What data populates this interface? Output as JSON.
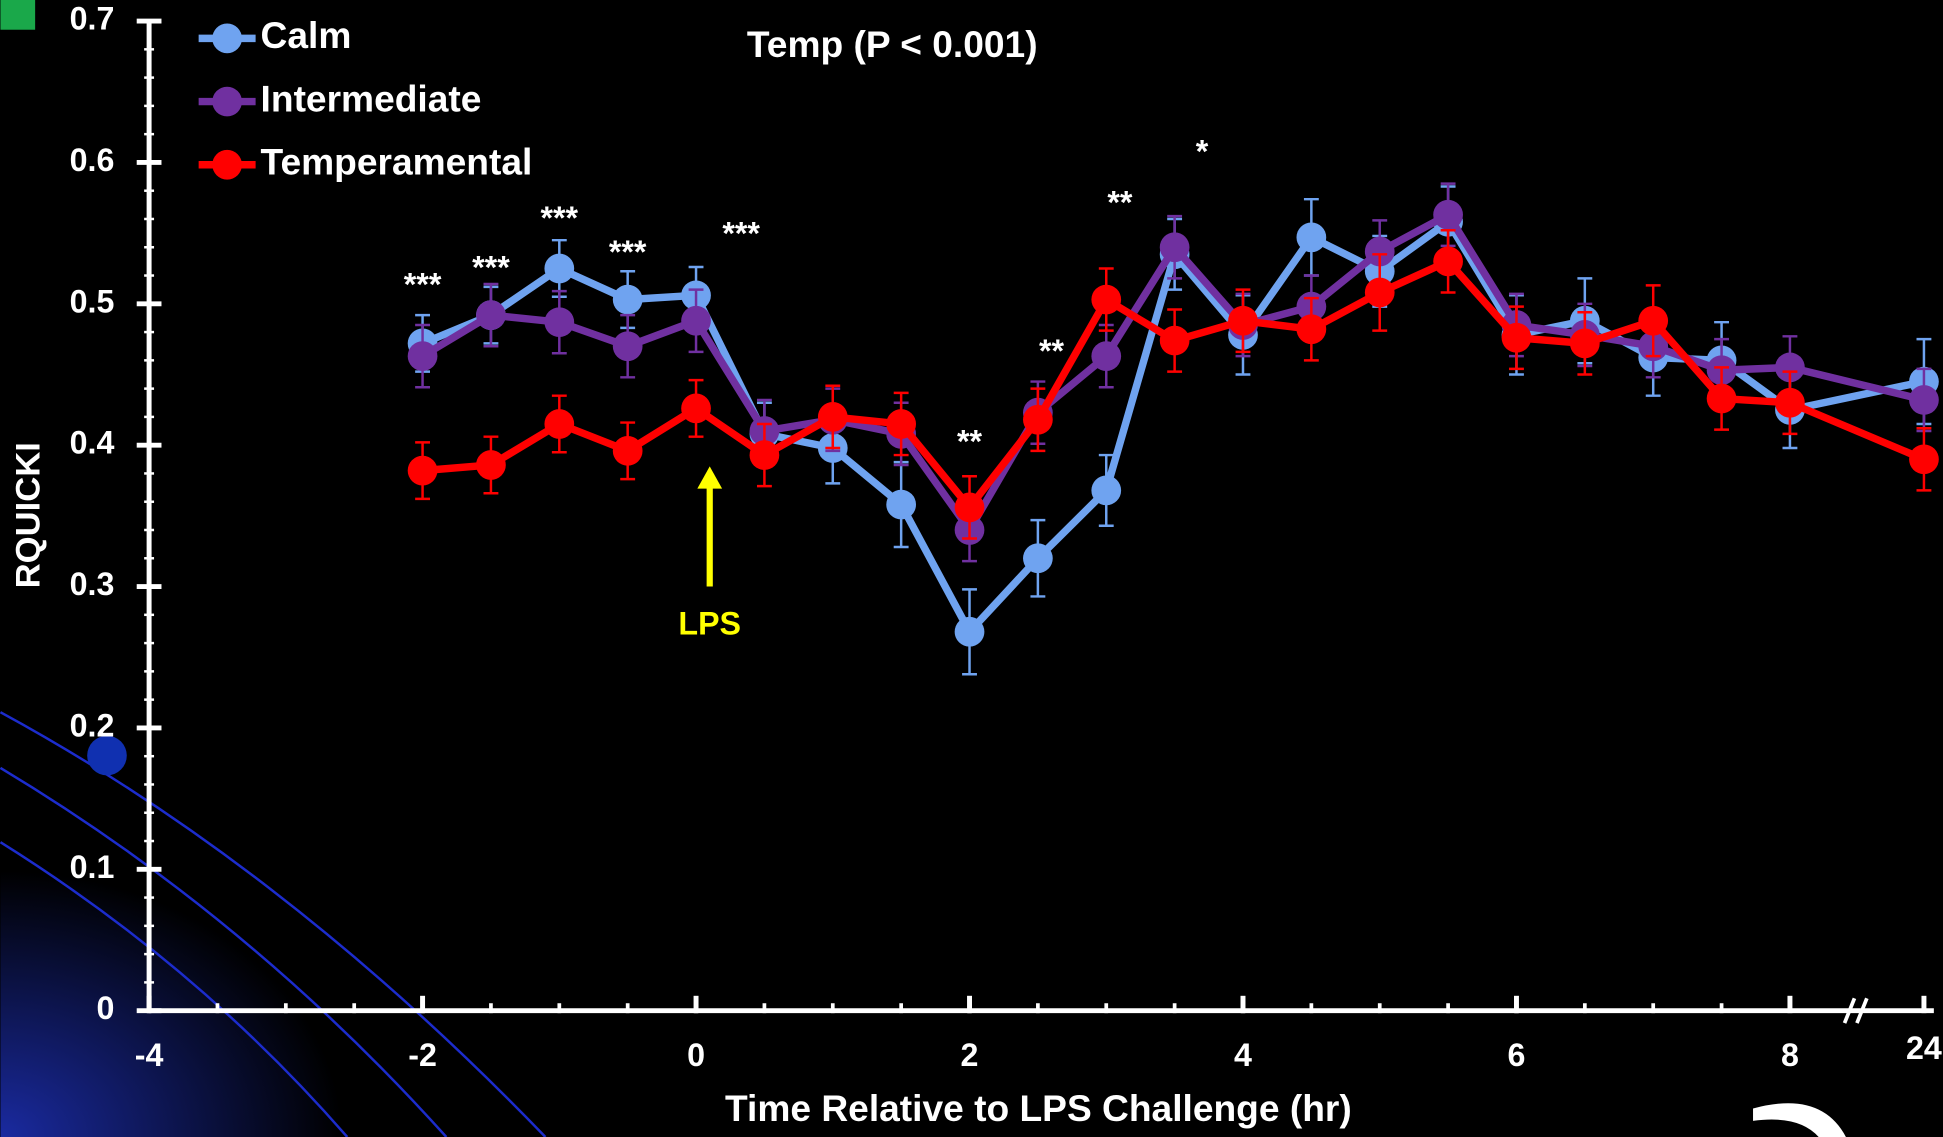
{
  "chart_data": {
    "type": "line",
    "subtitle": "Temp (P < 0.001)",
    "x_label": "Time Relative to LPS Challenge (hr)",
    "y_label": "RQUICKI",
    "x": [
      -2,
      -1.5,
      -1,
      -0.5,
      0,
      0.5,
      1,
      1.5,
      2,
      2.5,
      3,
      3.5,
      4,
      4.5,
      5,
      5.5,
      6,
      6.5,
      7,
      7.5,
      8,
      24
    ],
    "series": [
      {
        "name": "Calm",
        "color": "#6fa3f0",
        "values": [
          0.472,
          0.492,
          0.525,
          0.503,
          0.506,
          0.408,
          0.398,
          0.358,
          0.268,
          0.32,
          0.368,
          0.535,
          0.478,
          0.547,
          0.523,
          0.558,
          0.478,
          0.488,
          0.462,
          0.46,
          0.425,
          0.445
        ],
        "errors": [
          0.02,
          0.02,
          0.02,
          0.02,
          0.02,
          0.022,
          0.025,
          0.03,
          0.03,
          0.027,
          0.025,
          0.025,
          0.028,
          0.027,
          0.025,
          0.025,
          0.028,
          0.03,
          0.027,
          0.027,
          0.027,
          0.03
        ]
      },
      {
        "name": "Intermediate",
        "color": "#7030a0",
        "values": [
          0.463,
          0.492,
          0.487,
          0.47,
          0.488,
          0.41,
          0.418,
          0.408,
          0.34,
          0.423,
          0.463,
          0.54,
          0.485,
          0.498,
          0.537,
          0.563,
          0.485,
          0.478,
          0.47,
          0.453,
          0.455,
          0.432
        ],
        "errors": [
          0.022,
          0.022,
          0.022,
          0.022,
          0.022,
          0.022,
          0.022,
          0.022,
          0.022,
          0.022,
          0.022,
          0.022,
          0.022,
          0.022,
          0.022,
          0.022,
          0.022,
          0.022,
          0.022,
          0.022,
          0.022,
          0.022
        ]
      },
      {
        "name": "Temperamental",
        "color": "#ff0000",
        "values": [
          0.382,
          0.386,
          0.415,
          0.396,
          0.426,
          0.393,
          0.42,
          0.415,
          0.356,
          0.418,
          0.503,
          0.474,
          0.488,
          0.482,
          0.508,
          0.53,
          0.476,
          0.472,
          0.488,
          0.433,
          0.43,
          0.39
        ],
        "errors": [
          0.02,
          0.02,
          0.02,
          0.02,
          0.02,
          0.022,
          0.022,
          0.022,
          0.022,
          0.022,
          0.022,
          0.022,
          0.022,
          0.022,
          0.027,
          0.022,
          0.022,
          0.022,
          0.025,
          0.022,
          0.022,
          0.022
        ]
      }
    ],
    "xlim": [
      -4,
      24
    ],
    "x_break": 8,
    "xticks": [
      -4,
      -2,
      0,
      2,
      4,
      6,
      8,
      24
    ],
    "ylim": [
      0,
      0.7
    ],
    "yticks": [
      0,
      0.1,
      0.2,
      0.3,
      0.4,
      0.5,
      0.6,
      0.7
    ],
    "legend": "top-left",
    "annotations": [
      {
        "text": "***",
        "x": -2,
        "y": 0.512
      },
      {
        "text": "***",
        "x": -1.5,
        "y": 0.524
      },
      {
        "text": "***",
        "x": -1,
        "y": 0.559
      },
      {
        "text": "***",
        "x": -0.5,
        "y": 0.535
      },
      {
        "text": "***",
        "x": 0.33,
        "y": 0.548
      },
      {
        "text": "**",
        "x": 2,
        "y": 0.401
      },
      {
        "text": "**",
        "x": 2.6,
        "y": 0.465
      },
      {
        "text": "**",
        "x": 3.1,
        "y": 0.57
      },
      {
        "text": "*",
        "x": 3.7,
        "y": 0.606
      }
    ],
    "arrow": {
      "label": "LPS",
      "x": 0.1,
      "y_tail": 0.3,
      "y_head": 0.385,
      "color": "#ffff00"
    }
  }
}
